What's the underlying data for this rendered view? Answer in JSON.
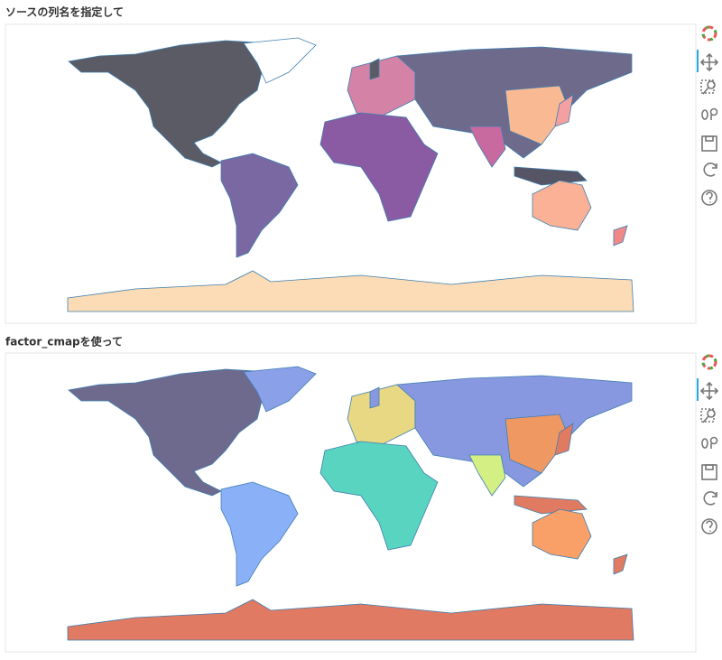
{
  "panels": [
    {
      "title": "ソースの列名を指定して"
    },
    {
      "title": "factor_cmapを使って"
    }
  ]
}
